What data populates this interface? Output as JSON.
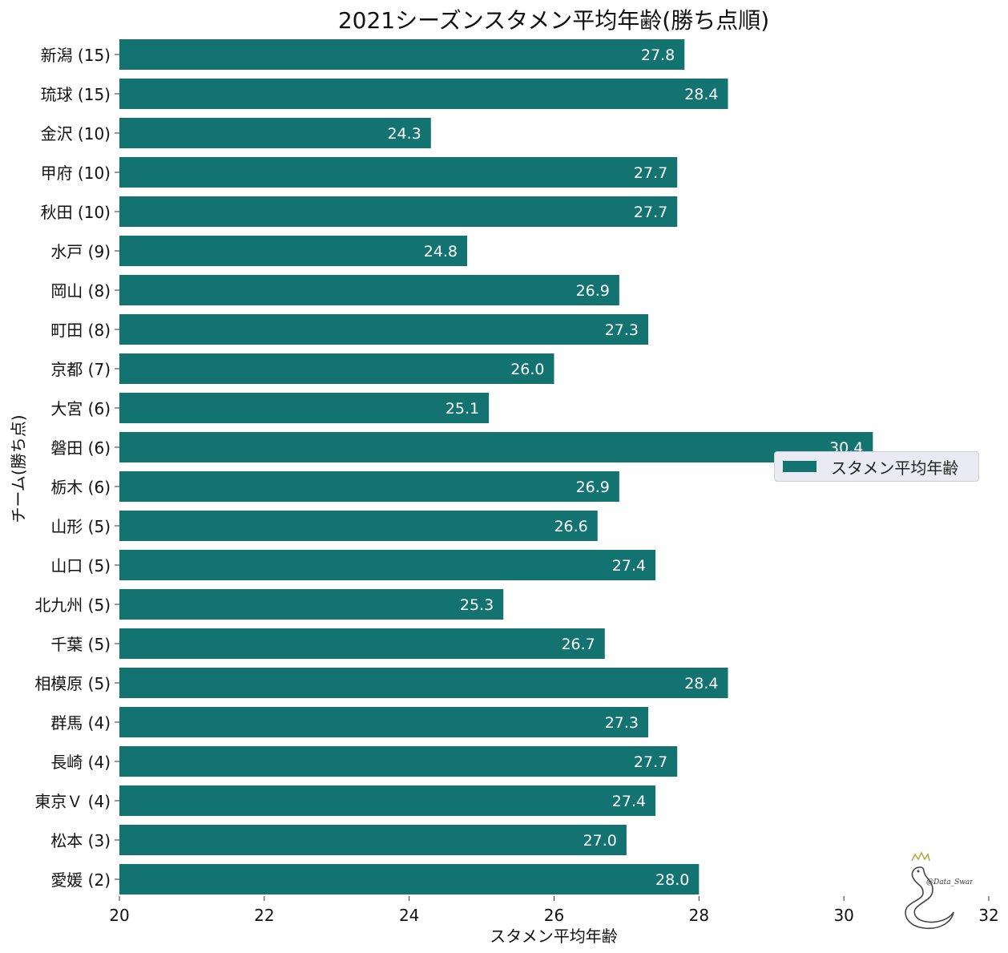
{
  "chart_data": {
    "type": "bar",
    "orientation": "horizontal",
    "title": "2021シーズンスタメン平均年齢(勝ち点順)",
    "xlabel": "スタメン平均年齢",
    "ylabel": "チーム(勝ち点)",
    "xlim": [
      20,
      32
    ],
    "xticks": [
      20,
      22,
      24,
      26,
      28,
      30,
      32
    ],
    "categories": [
      "新潟 (15)",
      "琉球 (15)",
      "金沢 (10)",
      "甲府 (10)",
      "秋田 (10)",
      "水戸 (9)",
      "岡山 (8)",
      "町田 (8)",
      "京都 (7)",
      "大宮 (6)",
      "磐田 (6)",
      "栃木 (6)",
      "山形 (5)",
      "山口 (5)",
      "北九州 (5)",
      "千葉 (5)",
      "相模原 (5)",
      "群馬 (4)",
      "長崎 (4)",
      "東京Ｖ (4)",
      "松本 (3)",
      "愛媛 (2)"
    ],
    "series": [
      {
        "name": "スタメン平均年齢",
        "color": "#127370",
        "values": [
          27.8,
          28.4,
          24.3,
          27.7,
          27.7,
          24.8,
          26.9,
          27.3,
          26.0,
          25.1,
          30.4,
          26.9,
          26.6,
          27.4,
          25.3,
          26.7,
          28.4,
          27.3,
          27.7,
          27.4,
          27.0,
          28.0
        ],
        "data_labels": [
          "27.8",
          "28.4",
          "24.3",
          "27.7",
          "27.7",
          "24.8",
          "26.9",
          "27.3",
          "26.0",
          "25.1",
          "30.4",
          "26.9",
          "26.6",
          "27.4",
          "25.3",
          "26.7",
          "28.4",
          "27.3",
          "27.7",
          "27.4",
          "27.0",
          "28.0"
        ]
      }
    ],
    "legend": {
      "position": "right",
      "label": "スタメン平均年齢"
    },
    "grid": false
  },
  "watermark": {
    "text": "@Data_Swan"
  }
}
